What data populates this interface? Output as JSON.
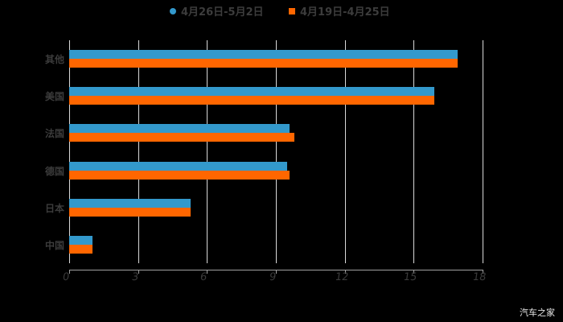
{
  "chart_data": {
    "type": "bar",
    "orientation": "horizontal",
    "title": "",
    "xlabel": "",
    "ylabel": "",
    "categories": [
      "其他",
      "美国",
      "法国",
      "德国",
      "日本",
      "中国"
    ],
    "series": [
      {
        "name": "4月26日-5月2日",
        "color": "#3399cc",
        "values": [
          16.9,
          15.9,
          9.6,
          9.5,
          5.3,
          1.0
        ]
      },
      {
        "name": "4月19日-4月25日",
        "color": "#ff6600",
        "values": [
          16.9,
          15.9,
          9.8,
          9.6,
          5.3,
          1.0
        ]
      }
    ],
    "xlim": [
      0,
      18
    ],
    "xticks": [
      "0",
      "3",
      "6",
      "9",
      "12",
      "15",
      "18"
    ],
    "grid": true,
    "legend_position": "top"
  },
  "legend": {
    "items": [
      {
        "label": "4月26日-5月2日",
        "color": "#3399cc",
        "shape": "circle"
      },
      {
        "label": "4月19日-4月25日",
        "color": "#ff6600",
        "shape": "square"
      }
    ]
  },
  "watermark": "汽车之家"
}
